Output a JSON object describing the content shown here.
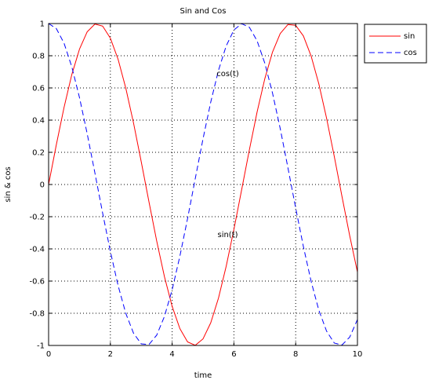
{
  "chart_data": {
    "type": "line",
    "title": "Sin and Cos",
    "xlabel": "time",
    "ylabel": "sin & cos",
    "xlim": [
      0,
      10
    ],
    "ylim": [
      -1,
      1
    ],
    "x_ticks": [
      0,
      2,
      4,
      6,
      8,
      10
    ],
    "y_ticks": [
      -1,
      -0.8,
      -0.6,
      -0.4,
      -0.2,
      0,
      0.2,
      0.4,
      0.6,
      0.8,
      1
    ],
    "grid": true,
    "legend_position": "outside-top-right",
    "x": [
      0,
      0.25,
      0.5,
      0.75,
      1,
      1.25,
      1.5,
      1.75,
      2,
      2.25,
      2.5,
      2.75,
      3,
      3.25,
      3.5,
      3.75,
      4,
      4.25,
      4.5,
      4.75,
      5,
      5.25,
      5.5,
      5.75,
      6,
      6.25,
      6.5,
      6.75,
      7,
      7.25,
      7.5,
      7.75,
      8,
      8.25,
      8.5,
      8.75,
      9,
      9.25,
      9.5,
      9.75,
      10
    ],
    "series": [
      {
        "name": "sin",
        "color": "#ff0000",
        "line_style": "solid",
        "values": [
          0,
          0.247,
          0.479,
          0.682,
          0.841,
          0.949,
          0.997,
          0.984,
          0.909,
          0.778,
          0.598,
          0.382,
          0.141,
          -0.108,
          -0.351,
          -0.572,
          -0.757,
          -0.895,
          -0.978,
          -0.999,
          -0.959,
          -0.859,
          -0.706,
          -0.508,
          -0.279,
          -0.033,
          0.215,
          0.45,
          0.657,
          0.823,
          0.938,
          0.994,
          0.989,
          0.923,
          0.798,
          0.625,
          0.412,
          0.174,
          -0.075,
          -0.319,
          -0.544
        ]
      },
      {
        "name": "cos",
        "color": "#0000ff",
        "line_style": "dashed",
        "values": [
          1,
          0.969,
          0.878,
          0.732,
          0.54,
          0.315,
          0.071,
          -0.178,
          -0.416,
          -0.628,
          -0.801,
          -0.924,
          -0.99,
          -0.994,
          -0.936,
          -0.82,
          -0.654,
          -0.446,
          -0.211,
          0.038,
          0.284,
          0.512,
          0.709,
          0.861,
          0.96,
          0.999,
          0.977,
          0.893,
          0.754,
          0.568,
          0.347,
          0.103,
          -0.146,
          -0.386,
          -0.602,
          -0.781,
          -0.911,
          -0.985,
          -0.997,
          -0.948,
          -0.839
        ]
      }
    ],
    "annotations": [
      {
        "text": "cos(t)",
        "x": 5.8,
        "y": 0.69
      },
      {
        "text": "sin(t)",
        "x": 5.8,
        "y": -0.31
      }
    ]
  }
}
